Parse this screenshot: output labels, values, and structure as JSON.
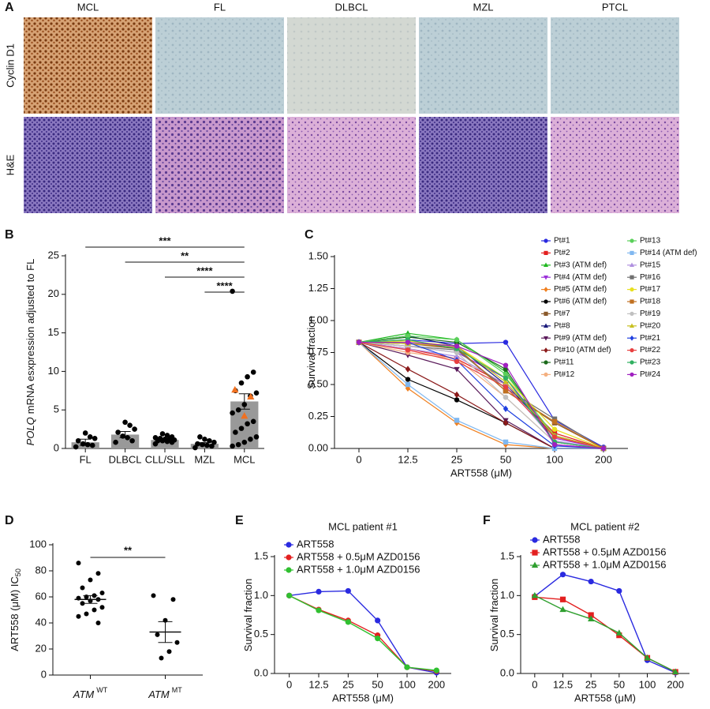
{
  "panel_a": {
    "label": "A",
    "columns": [
      "MCL",
      "FL",
      "DLBCL",
      "MZL",
      "PTCL"
    ],
    "rows": [
      "Cyclin D1",
      "H&E"
    ]
  },
  "chart_data": [
    {
      "type": "bar",
      "panel": "B",
      "y_label_italic": "POLQ",
      "y_label": "mRNA esxpression adjusted to FL",
      "categories": [
        "FL",
        "DLBCL",
        "CLL/SLL",
        "MZL",
        "MCL"
      ],
      "values": [
        0.8,
        1.8,
        1.1,
        0.6,
        6.1
      ],
      "errors": [
        0.4,
        0.4,
        0.15,
        0.15,
        1.0
      ],
      "color": "#999999",
      "points": [
        [
          0.2,
          0.4,
          0.5,
          0.6,
          1.0,
          1.3,
          1.5,
          2.0
        ],
        [
          0.8,
          1.0,
          1.4,
          1.6,
          2.1,
          2.5,
          3.0,
          3.4
        ],
        [
          0.6,
          0.8,
          0.9,
          1.0,
          1.0,
          1.1,
          1.2,
          1.2,
          1.3,
          1.4,
          1.5,
          1.7,
          1.9
        ],
        [
          0.1,
          0.3,
          0.4,
          0.5,
          0.6,
          0.8,
          1.0,
          1.2,
          1.5
        ],
        [
          20.4,
          9.9,
          9.3,
          8.5,
          7.5,
          7.2,
          6.8,
          5.7,
          5.0,
          4.6,
          3.5,
          3.2,
          2.6,
          2.1,
          1.5,
          1.2,
          0.8,
          0.5,
          0.3
        ]
      ],
      "highlight_points": [
        7.6,
        6.7,
        4.2
      ],
      "highlight_color": "#f07020",
      "ylim": [
        0,
        25
      ],
      "yticks": [
        0,
        5,
        10,
        15,
        20,
        25
      ],
      "significance": [
        {
          "from": "FL",
          "to": "MCL",
          "label": "***"
        },
        {
          "from": "DLBCL",
          "to": "MCL",
          "label": "**"
        },
        {
          "from": "CLL/SLL",
          "to": "MCL",
          "label": "****"
        },
        {
          "from": "MZL",
          "to": "MCL",
          "label": "****"
        }
      ]
    },
    {
      "type": "line",
      "panel": "C",
      "y_label": "Survival fraction",
      "x_label": "ART558 (μM)",
      "categories": [
        "0",
        "12.5",
        "25",
        "50",
        "100",
        "200"
      ],
      "ylim": [
        0,
        1.5
      ],
      "yticks": [
        {
          "value": 0,
          "label": "0.00"
        },
        0.25,
        {
          "value": 0.5,
          "label": "0.50"
        },
        0.75,
        {
          "value": 1,
          "label": "1.00"
        },
        1.25,
        {
          "value": 1.5,
          "label": "1.50"
        }
      ],
      "series": [
        {
          "name": "Pt#1",
          "color": "#2a2ae0",
          "marker": "circle",
          "values": [
            0.83,
            0.85,
            0.82,
            0.83,
            0.22,
            0.01
          ]
        },
        {
          "name": "Pt#2",
          "color": "#e32020",
          "marker": "square",
          "values": [
            0.83,
            0.78,
            0.7,
            0.5,
            0.12,
            0
          ]
        },
        {
          "name": "Pt#3 (ATM def)",
          "color": "#1fb81f",
          "marker": "triangle",
          "values": [
            0.83,
            0.9,
            0.85,
            0.6,
            0.05,
            0
          ]
        },
        {
          "name": "Pt#4 (ATM def)",
          "color": "#9b30d9",
          "marker": "triangle-down",
          "values": [
            0.83,
            0.8,
            0.75,
            0.55,
            0.08,
            0
          ]
        },
        {
          "name": "Pt#5 (ATM def)",
          "color": "#f08020",
          "marker": "diamond",
          "values": [
            0.83,
            0.47,
            0.2,
            0.03,
            0,
            0
          ]
        },
        {
          "name": "Pt#6 (ATM def)",
          "color": "#000000",
          "marker": "circle",
          "values": [
            0.83,
            0.54,
            0.38,
            0.2,
            0,
            0
          ]
        },
        {
          "name": "Pt#7",
          "color": "#8b5a2b",
          "marker": "square",
          "values": [
            0.83,
            0.82,
            0.78,
            0.45,
            0.2,
            0
          ]
        },
        {
          "name": "Pt#8",
          "color": "#1a1a7a",
          "marker": "triangle",
          "values": [
            0.83,
            0.88,
            0.8,
            0.5,
            0.1,
            0
          ]
        },
        {
          "name": "Pt#9 (ATM def)",
          "color": "#5a1a5a",
          "marker": "triangle-down",
          "values": [
            0.83,
            0.73,
            0.62,
            0.22,
            0,
            0
          ]
        },
        {
          "name": "Pt#10 (ATM def)",
          "color": "#8b1a1a",
          "marker": "diamond",
          "values": [
            0.83,
            0.62,
            0.42,
            0.2,
            0,
            0
          ]
        },
        {
          "name": "Pt#11",
          "color": "#1a6a1a",
          "marker": "circle",
          "values": [
            0.83,
            0.87,
            0.83,
            0.62,
            0.05,
            0
          ]
        },
        {
          "name": "Pt#12",
          "color": "#f4b080",
          "marker": "circle",
          "values": [
            0.83,
            0.75,
            0.7,
            0.4,
            0.05,
            0
          ]
        },
        {
          "name": "Pt#13",
          "color": "#5ad05a",
          "marker": "circle",
          "values": [
            0.83,
            0.88,
            0.85,
            0.58,
            0.1,
            0
          ]
        },
        {
          "name": "Pt#14 (ATM def)",
          "color": "#80b8f0",
          "marker": "square",
          "values": [
            0.83,
            0.5,
            0.22,
            0.05,
            0,
            0
          ]
        },
        {
          "name": "Pt#15",
          "color": "#b090e0",
          "marker": "triangle",
          "values": [
            0.83,
            0.78,
            0.72,
            0.5,
            0.06,
            0
          ]
        },
        {
          "name": "Pt#16",
          "color": "#707070",
          "marker": "square",
          "values": [
            0.83,
            0.8,
            0.77,
            0.47,
            0.23,
            0
          ]
        },
        {
          "name": "Pt#17",
          "color": "#e8e020",
          "marker": "circle",
          "values": [
            0.83,
            0.84,
            0.8,
            0.55,
            0.15,
            0
          ]
        },
        {
          "name": "Pt#18",
          "color": "#c07020",
          "marker": "square",
          "values": [
            0.83,
            0.82,
            0.79,
            0.45,
            0.21,
            0
          ]
        },
        {
          "name": "Pt#19",
          "color": "#c0c0c0",
          "marker": "circle",
          "values": [
            0.83,
            0.8,
            0.75,
            0.4,
            0.05,
            0
          ]
        },
        {
          "name": "Pt#20",
          "color": "#c8c020",
          "marker": "triangle",
          "values": [
            0.83,
            0.82,
            0.8,
            0.52,
            0.1,
            0
          ]
        },
        {
          "name": "Pt#21",
          "color": "#2040e0",
          "marker": "diamond",
          "values": [
            0.83,
            0.83,
            0.69,
            0.31,
            0.02,
            0
          ]
        },
        {
          "name": "Pt#22",
          "color": "#e84040",
          "marker": "circle",
          "values": [
            0.83,
            0.77,
            0.68,
            0.48,
            0.09,
            0
          ]
        },
        {
          "name": "Pt#23",
          "color": "#30b060",
          "marker": "circle",
          "values": [
            0.83,
            0.85,
            0.78,
            0.55,
            0.05,
            0
          ]
        },
        {
          "name": "Pt#24",
          "color": "#a020c0",
          "marker": "circle",
          "values": [
            0.83,
            0.83,
            0.8,
            0.65,
            0.03,
            0
          ]
        }
      ]
    },
    {
      "type": "dot",
      "panel": "D",
      "y_label": "ART558 (μM) IC",
      "y_label_sub": "50",
      "categories": [
        {
          "name": "ATM",
          "sup": "WT"
        },
        {
          "name": "ATM",
          "sup": "MT"
        }
      ],
      "points": [
        [
          86,
          78,
          73,
          67,
          63,
          61,
          60,
          59,
          58,
          57,
          55,
          52,
          50,
          47,
          45,
          40
        ],
        [
          61,
          58,
          42,
          31,
          25,
          18,
          13
        ]
      ],
      "values": [
        58,
        33
      ],
      "errors": [
        3,
        8
      ],
      "ylim": [
        0,
        100
      ],
      "yticks": [
        0,
        20,
        40,
        60,
        80,
        100
      ],
      "significance": "**"
    },
    {
      "type": "line",
      "panel": "E",
      "title": "MCL patient #1",
      "y_label": "Survival fraction",
      "x_label": "ART558 (μM)",
      "categories": [
        "0",
        "12.5",
        "25",
        "50",
        "100",
        "200"
      ],
      "ylim": [
        0,
        1.5
      ],
      "yticks": [
        {
          "value": 0,
          "label": "0.0"
        },
        0.5,
        {
          "value": 1,
          "label": "1.0"
        },
        1.5
      ],
      "series": [
        {
          "name": "ART558",
          "color": "#2a2ae0",
          "marker": "circle",
          "values": [
            1.0,
            1.05,
            1.06,
            0.68,
            0.08,
            0.01
          ]
        },
        {
          "name": "ART558 + 0.5μM AZD0156",
          "color": "#e32020",
          "marker": "circle",
          "values": [
            1.0,
            0.82,
            0.68,
            0.49,
            0.08,
            0.03
          ]
        },
        {
          "name": "ART558 + 1.0μM AZD0156",
          "color": "#30c030",
          "marker": "circle",
          "values": [
            1.0,
            0.81,
            0.66,
            0.45,
            0.08,
            0.04
          ]
        }
      ]
    },
    {
      "type": "line",
      "panel": "F",
      "title": "MCL patient #2",
      "y_label": "Survival fraction",
      "x_label": "ART558 (μM)",
      "categories": [
        "0",
        "12.5",
        "25",
        "50",
        "100",
        "200"
      ],
      "ylim": [
        0,
        1.5
      ],
      "yticks": [
        {
          "value": 0,
          "label": "0.0"
        },
        0.5,
        {
          "value": 1,
          "label": "1.0"
        },
        1.5
      ],
      "series": [
        {
          "name": "ART558",
          "color": "#2a2ae0",
          "marker": "circle",
          "values": [
            0.99,
            1.27,
            1.18,
            1.06,
            0.17,
            0.01
          ]
        },
        {
          "name": "ART558 + 0.5μM AZD0156",
          "color": "#e32020",
          "marker": "square",
          "values": [
            0.98,
            0.95,
            0.75,
            0.49,
            0.2,
            0.02
          ]
        },
        {
          "name": "ART558 + 1.0μM AZD0156",
          "color": "#30a030",
          "marker": "triangle",
          "values": [
            1.0,
            0.82,
            0.7,
            0.52,
            0.2,
            0.02
          ]
        }
      ]
    }
  ]
}
